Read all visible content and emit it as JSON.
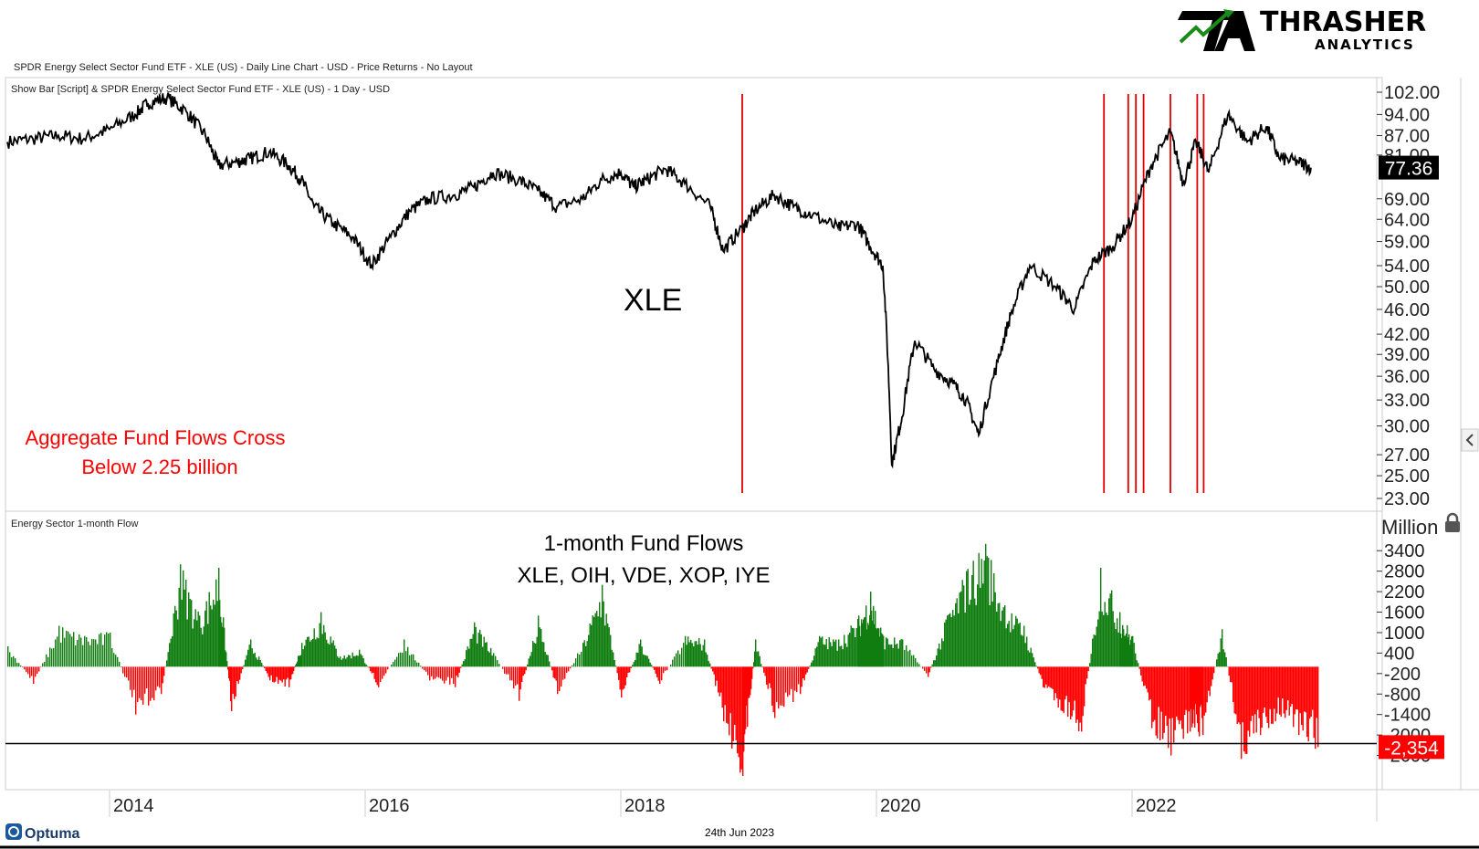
{
  "header": {
    "chart_description": "SPDR Energy Select Sector Fund ETF - XLE (US) - Daily Line Chart - USD - Price Returns - No Layout",
    "logo_title": "THRASHER",
    "logo_subtitle": "ANALYTICS"
  },
  "footer": {
    "brand": "Optuma",
    "date": "24th Jun 2023"
  },
  "colors": {
    "price_line": "#000000",
    "signal_line": "#e00000",
    "flow_positive": "#0f7d0f",
    "flow_negative": "#ff0000",
    "annotation": "#ff0000",
    "logo_green": "#1a8a1a"
  },
  "chart_data": [
    {
      "type": "line",
      "panel_title": "Show Bar [Script] & SPDR Energy Select Sector Fund ETF - XLE (US) - 1 Day - USD",
      "label": "XLE",
      "annotation": [
        "Aggregate Fund Flows Cross",
        "Below 2.25 billion"
      ],
      "y_scale": "log",
      "ylim": [
        23,
        102
      ],
      "y_ticks": [
        "102.00",
        "94.00",
        "87.00",
        "81.00",
        "69.00",
        "64.00",
        "59.00",
        "54.00",
        "50.00",
        "46.00",
        "42.00",
        "39.00",
        "36.00",
        "33.00",
        "30.00",
        "27.00",
        "25.00",
        "23.00"
      ],
      "last_value": "77.36",
      "x_range": [
        2013.2,
        2023.5
      ],
      "series": [
        {
          "x": [
            2013.2,
            2013.4,
            2013.6,
            2013.8,
            2014.0,
            2014.2,
            2014.3,
            2014.45,
            2014.6,
            2014.75,
            2014.85,
            2015.0,
            2015.1,
            2015.25,
            2015.4,
            2015.5,
            2015.6,
            2015.75,
            2015.9,
            2016.05,
            2016.2,
            2016.35,
            2016.5,
            2016.7,
            2016.85,
            2017.0,
            2017.2,
            2017.35,
            2017.5,
            2017.7,
            2017.85,
            2018.0,
            2018.1,
            2018.2,
            2018.35,
            2018.5,
            2018.7,
            2018.8,
            2018.95,
            2019.05,
            2019.2,
            2019.35,
            2019.5,
            2019.7,
            2019.85,
            2019.95,
            2020.05,
            2020.12,
            2020.2,
            2020.3,
            2020.45,
            2020.6,
            2020.7,
            2020.8,
            2020.95,
            2021.05,
            2021.2,
            2021.4,
            2021.55,
            2021.7,
            2021.85,
            2022.0,
            2022.15,
            2022.3,
            2022.4,
            2022.5,
            2022.6,
            2022.75,
            2022.9,
            2023.05,
            2023.15,
            2023.3,
            2023.4
          ],
          "y": [
            85,
            86,
            87,
            86,
            89,
            94,
            98,
            100,
            95,
            87,
            78,
            79,
            80,
            82,
            78,
            74,
            67,
            63,
            60,
            54,
            60,
            66,
            69,
            70,
            72,
            76,
            74,
            71,
            67,
            69,
            74,
            76,
            72,
            74,
            77,
            73,
            67,
            57,
            62,
            66,
            70,
            67,
            65,
            62,
            63,
            58,
            54,
            26,
            31,
            41,
            37,
            35,
            33,
            29,
            38,
            45,
            54,
            50,
            46,
            55,
            58,
            64,
            78,
            88,
            73,
            85,
            76,
            94,
            85,
            90,
            80,
            79,
            77.36
          ]
        }
      ],
      "signal_dates": [
        2018.95,
        2021.78,
        2021.97,
        2022.03,
        2022.09,
        2022.3,
        2022.51,
        2022.56
      ]
    },
    {
      "type": "bar",
      "panel_title": "Energy Sector 1-month Flow",
      "title_lines": [
        "1-month Fund Flows",
        "XLE, OIH, VDE, XOP, IYE"
      ],
      "ylabel": "Million",
      "ylim": [
        -3200,
        3700
      ],
      "y_ticks": [
        "3400",
        "2800",
        "2200",
        "1600",
        "1000",
        "400",
        "-200",
        "-800",
        "-1400",
        "-2000",
        "-2600"
      ],
      "threshold": -2250,
      "last_value": "-2,354",
      "x": [
        2013.2,
        2013.4,
        2013.6,
        2013.8,
        2014.0,
        2014.2,
        2014.4,
        2014.55,
        2014.7,
        2014.85,
        2014.95,
        2015.1,
        2015.25,
        2015.4,
        2015.5,
        2015.65,
        2015.8,
        2015.95,
        2016.1,
        2016.3,
        2016.5,
        2016.7,
        2016.85,
        2017.0,
        2017.2,
        2017.35,
        2017.5,
        2017.7,
        2017.85,
        2018.0,
        2018.15,
        2018.3,
        2018.5,
        2018.65,
        2018.8,
        2018.95,
        2019.05,
        2019.2,
        2019.4,
        2019.55,
        2019.7,
        2019.85,
        2019.95,
        2020.05,
        2020.2,
        2020.4,
        2020.55,
        2020.7,
        2020.85,
        2021.0,
        2021.15,
        2021.3,
        2021.45,
        2021.6,
        2021.75,
        2021.9,
        2022.0,
        2022.15,
        2022.3,
        2022.45,
        2022.55,
        2022.7,
        2022.85,
        2023.0,
        2023.15,
        2023.3,
        2023.45
      ],
      "values": [
        600,
        -500,
        1200,
        900,
        1000,
        -1400,
        -800,
        3000,
        1500,
        2900,
        -1300,
        800,
        -400,
        -600,
        700,
        1600,
        300,
        500,
        -600,
        800,
        -400,
        -600,
        1300,
        400,
        -1000,
        1500,
        -800,
        700,
        2400,
        -900,
        800,
        -500,
        900,
        800,
        -1600,
        -3200,
        800,
        -1500,
        -800,
        900,
        800,
        1400,
        2200,
        900,
        800,
        -300,
        1500,
        2800,
        3600,
        1800,
        1200,
        -600,
        -1300,
        -1900,
        2900,
        1600,
        900,
        -1800,
        -2600,
        -1900,
        -2000,
        1100,
        -2700,
        -2000,
        -1400,
        -2000,
        -2354
      ]
    }
  ],
  "x_axis": {
    "labels": [
      "2014",
      "2016",
      "2018",
      "2020",
      "2022"
    ],
    "years": [
      2014,
      2016,
      2018,
      2020,
      2022
    ]
  },
  "icons": {
    "collapse": "chevron-left-icon",
    "lock": "lock-icon"
  }
}
